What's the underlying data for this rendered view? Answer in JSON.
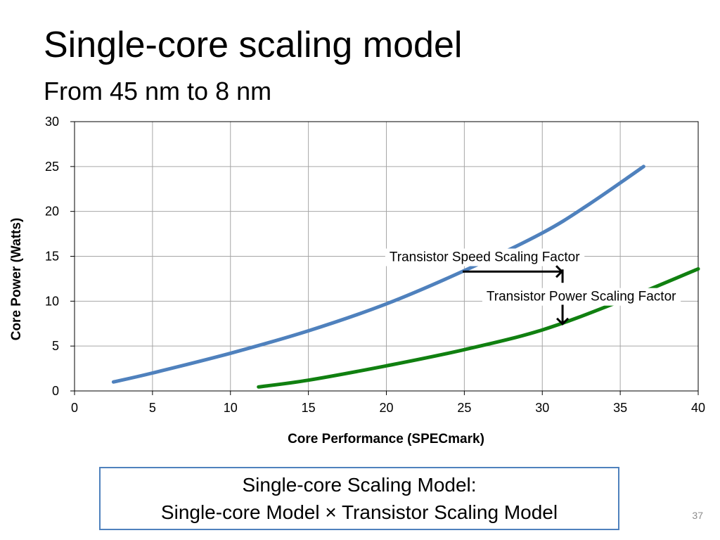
{
  "slide": {
    "title": "Single-core scaling model",
    "subtitle": "From 45 nm to 8 nm",
    "formula_line1": "Single-core Scaling Model:",
    "formula_line2": "Single-core Model × Transistor Scaling Model",
    "page_number": "37"
  },
  "chart_data": {
    "type": "line",
    "title": "",
    "xlabel": "Core Performance (SPECmark)",
    "ylabel": "Core Power (Watts)",
    "xlim": [
      0,
      40
    ],
    "ylim": [
      0,
      30
    ],
    "xticks": [
      0,
      5,
      10,
      15,
      20,
      25,
      30,
      35,
      40
    ],
    "yticks": [
      0,
      5,
      10,
      15,
      20,
      25,
      30
    ],
    "grid": true,
    "legend": "none",
    "series": [
      {
        "color": "#4f81bd",
        "points": [
          [
            2.5,
            1.0
          ],
          [
            5,
            2.0
          ],
          [
            10,
            4.2
          ],
          [
            15,
            6.7
          ],
          [
            20,
            9.7
          ],
          [
            25,
            13.4
          ],
          [
            30,
            17.6
          ],
          [
            33,
            20.8
          ],
          [
            36.5,
            25.0
          ]
        ]
      },
      {
        "color": "#108010",
        "points": [
          [
            11.8,
            0.45
          ],
          [
            15,
            1.2
          ],
          [
            20,
            2.8
          ],
          [
            25,
            4.6
          ],
          [
            30,
            6.8
          ],
          [
            35,
            10.0
          ],
          [
            40,
            13.6
          ]
        ]
      }
    ],
    "annotations": [
      {
        "id": "speed",
        "text": "Transistor Speed Scaling Factor",
        "text_at": [
          26.3,
          15.0
        ],
        "arrow": "right",
        "arrow_from": [
          24.9,
          13.3
        ],
        "arrow_to": [
          31.3,
          13.3
        ]
      },
      {
        "id": "power",
        "text": "Transistor Power Scaling Factor",
        "text_at": [
          32.5,
          10.6
        ],
        "arrow": "down",
        "arrow_from": [
          31.3,
          9.6
        ],
        "arrow_to": [
          31.3,
          7.3
        ]
      }
    ]
  }
}
